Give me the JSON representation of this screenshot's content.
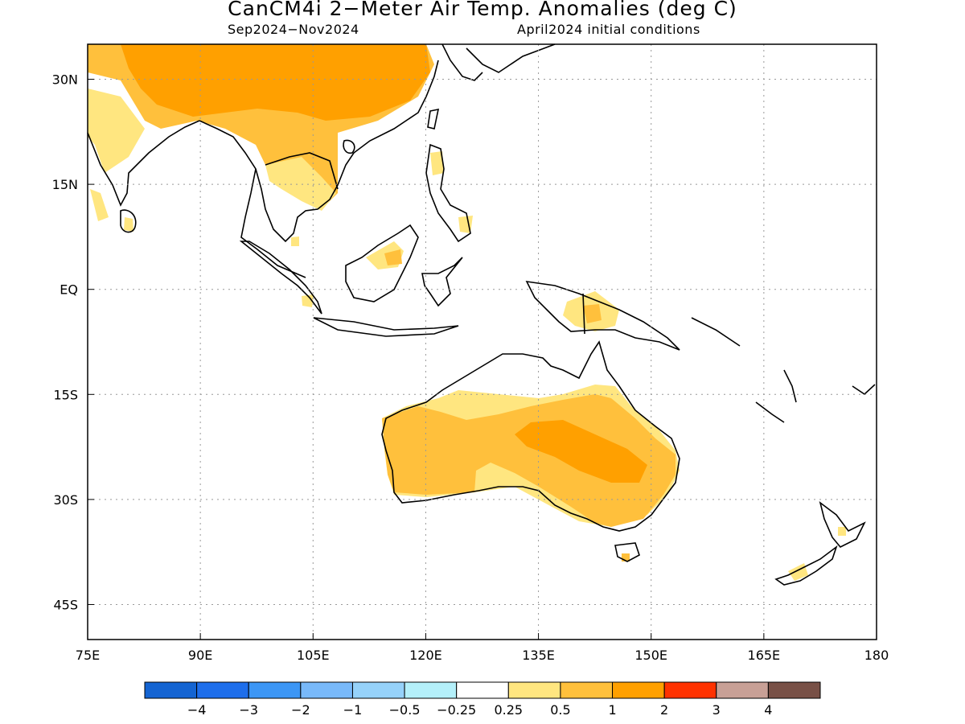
{
  "title": "CanCM4i 2−Meter Air Temp. Anomalies (deg C)",
  "subtitle_left": "Sep2024−Nov2024",
  "subtitle_right": "April2024 initial conditions",
  "map": {
    "lon_range": [
      75,
      180
    ],
    "lat_range": [
      -50,
      35
    ],
    "x_ticks": [
      "75E",
      "90E",
      "105E",
      "120E",
      "135E",
      "150E",
      "165E",
      "180"
    ],
    "y_ticks": [
      "30N",
      "15N",
      "EQ",
      "15S",
      "30S",
      "45S"
    ],
    "gridlines": true
  },
  "colors": {
    "anom_0_25_to_0_5": "#ffe680",
    "anom_0_5_to_1": "#ffc03c",
    "anom_1_to_2": "#ffa000",
    "coastline": "#000000"
  },
  "colorbar": {
    "colors": [
      "#1464d2",
      "#1e6eeb",
      "#3c96f5",
      "#78b9fa",
      "#96d2fa",
      "#b4f0fa",
      "#ffffff",
      "#ffe680",
      "#ffc03c",
      "#ffa000",
      "#ff3200",
      "#c8a096",
      "#785046"
    ],
    "labels": [
      "−4",
      "−3",
      "−2",
      "−1",
      "−0.5",
      "−0.25",
      "0.25",
      "0.5",
      "1",
      "2",
      "3",
      "4"
    ]
  }
}
